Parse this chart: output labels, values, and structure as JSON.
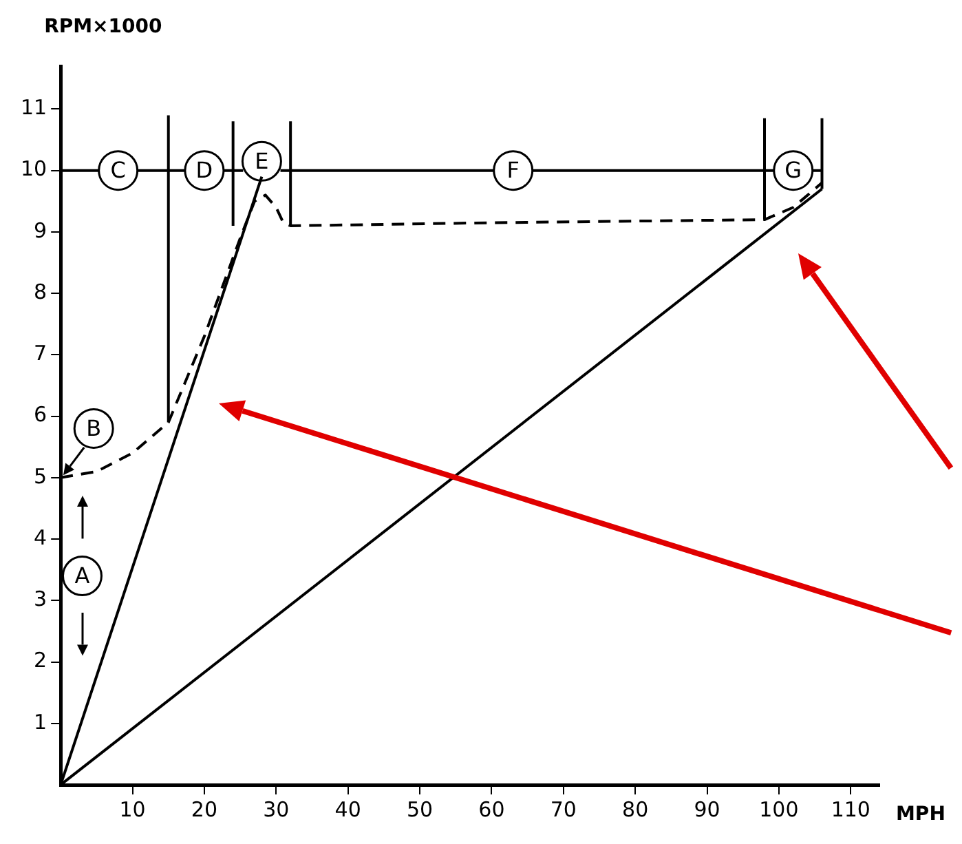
{
  "chart_data": {
    "type": "line",
    "xlabel": "MPH",
    "ylabel": "RPM×1000",
    "xlim": [
      0,
      114
    ],
    "ylim": [
      0,
      11.7
    ],
    "xticks": [
      10,
      20,
      30,
      40,
      50,
      60,
      70,
      80,
      90,
      100,
      110
    ],
    "yticks": [
      1,
      2,
      3,
      4,
      5,
      6,
      7,
      8,
      9,
      10,
      11
    ],
    "grid": false,
    "legend": false,
    "marker": "none",
    "series": [
      {
        "color": "#000000",
        "x": [
          0,
          28
        ],
        "values": [
          0,
          9.9
        ]
      },
      {
        "color": "#000000",
        "x": [
          0,
          106
        ],
        "values": [
          0,
          9.7
        ]
      },
      {
        "color": "#000000",
        "line_style": "dashed",
        "x": [
          0,
          5,
          10,
          15,
          20,
          25,
          27,
          28.5,
          30,
          31,
          32,
          60,
          98,
          102,
          106
        ],
        "values": [
          5,
          5.1,
          5.4,
          5.9,
          7.3,
          8.9,
          9.5,
          9.6,
          9.4,
          9.15,
          9.1,
          9.15,
          9.2,
          9.4,
          9.8
        ]
      },
      {
        "color": "#000000",
        "x": [
          0,
          5.4,
          7,
          10.6,
          17.4,
          19,
          22.6,
          25.4,
          27,
          30.6,
          60.4,
          62,
          65.6,
          99.4,
          101,
          104.6,
          106
        ],
        "values": [
          10,
          10,
          null,
          10,
          10,
          null,
          10,
          10,
          null,
          10,
          10,
          null,
          10,
          10,
          null,
          10,
          10
        ]
      },
      {
        "color": "#000000",
        "x": [
          15,
          15
        ],
        "values": [
          5.9,
          10.9
        ]
      },
      {
        "color": "#000000",
        "x": [
          24,
          24
        ],
        "values": [
          9.1,
          10.8
        ]
      },
      {
        "color": "#000000",
        "x": [
          32,
          32
        ],
        "values": [
          9.1,
          10.8
        ]
      },
      {
        "color": "#000000",
        "x": [
          98,
          98
        ],
        "values": [
          9.2,
          10.85
        ]
      },
      {
        "color": "#000000",
        "x": [
          106,
          106
        ],
        "values": [
          9.7,
          10.85
        ]
      }
    ],
    "annotations": [
      {
        "text": "A",
        "x": 3,
        "y": 3.4
      },
      {
        "text": "B",
        "x": 4.6,
        "y": 5.8
      },
      {
        "text": "C",
        "x": 8,
        "y": 10
      },
      {
        "text": "D",
        "x": 20,
        "y": 10
      },
      {
        "text": "E",
        "x": 28,
        "y": 10.15
      },
      {
        "text": "F",
        "x": 63,
        "y": 10
      },
      {
        "text": "G",
        "x": 102,
        "y": 10
      }
    ]
  }
}
